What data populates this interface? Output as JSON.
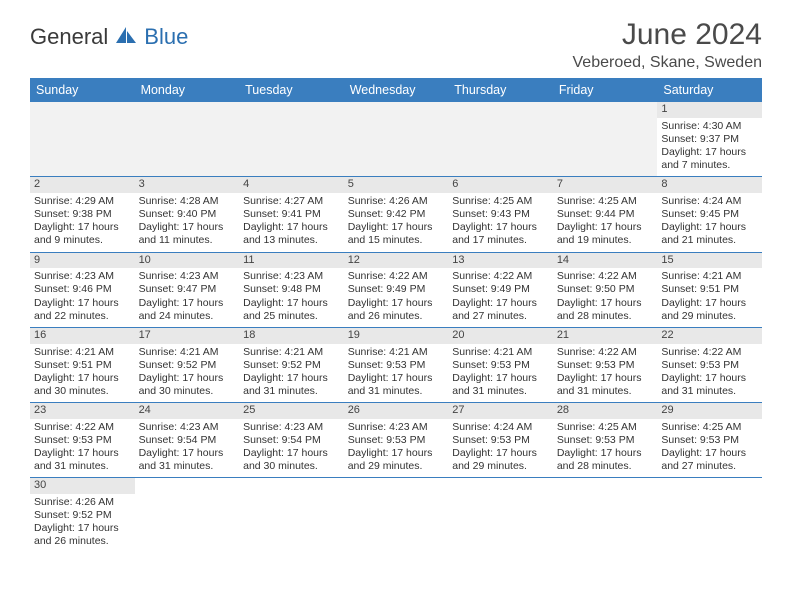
{
  "logo": {
    "part1": "General",
    "part2": "Blue"
  },
  "title": "June 2024",
  "location": "Veberoed, Skane, Sweden",
  "colors": {
    "header_bg": "#3a7ebf",
    "header_text": "#ffffff",
    "daynum_bg": "#e8e8e8",
    "border": "#3a7ebf",
    "logo_blue": "#2b6fb0"
  },
  "dayHeaders": [
    "Sunday",
    "Monday",
    "Tuesday",
    "Wednesday",
    "Thursday",
    "Friday",
    "Saturday"
  ],
  "weeks": [
    [
      null,
      null,
      null,
      null,
      null,
      null,
      {
        "n": "1",
        "sr": "4:30 AM",
        "ss": "9:37 PM",
        "dl": "17 hours and 7 minutes."
      }
    ],
    [
      {
        "n": "2",
        "sr": "4:29 AM",
        "ss": "9:38 PM",
        "dl": "17 hours and 9 minutes."
      },
      {
        "n": "3",
        "sr": "4:28 AM",
        "ss": "9:40 PM",
        "dl": "17 hours and 11 minutes."
      },
      {
        "n": "4",
        "sr": "4:27 AM",
        "ss": "9:41 PM",
        "dl": "17 hours and 13 minutes."
      },
      {
        "n": "5",
        "sr": "4:26 AM",
        "ss": "9:42 PM",
        "dl": "17 hours and 15 minutes."
      },
      {
        "n": "6",
        "sr": "4:25 AM",
        "ss": "9:43 PM",
        "dl": "17 hours and 17 minutes."
      },
      {
        "n": "7",
        "sr": "4:25 AM",
        "ss": "9:44 PM",
        "dl": "17 hours and 19 minutes."
      },
      {
        "n": "8",
        "sr": "4:24 AM",
        "ss": "9:45 PM",
        "dl": "17 hours and 21 minutes."
      }
    ],
    [
      {
        "n": "9",
        "sr": "4:23 AM",
        "ss": "9:46 PM",
        "dl": "17 hours and 22 minutes."
      },
      {
        "n": "10",
        "sr": "4:23 AM",
        "ss": "9:47 PM",
        "dl": "17 hours and 24 minutes."
      },
      {
        "n": "11",
        "sr": "4:23 AM",
        "ss": "9:48 PM",
        "dl": "17 hours and 25 minutes."
      },
      {
        "n": "12",
        "sr": "4:22 AM",
        "ss": "9:49 PM",
        "dl": "17 hours and 26 minutes."
      },
      {
        "n": "13",
        "sr": "4:22 AM",
        "ss": "9:49 PM",
        "dl": "17 hours and 27 minutes."
      },
      {
        "n": "14",
        "sr": "4:22 AM",
        "ss": "9:50 PM",
        "dl": "17 hours and 28 minutes."
      },
      {
        "n": "15",
        "sr": "4:21 AM",
        "ss": "9:51 PM",
        "dl": "17 hours and 29 minutes."
      }
    ],
    [
      {
        "n": "16",
        "sr": "4:21 AM",
        "ss": "9:51 PM",
        "dl": "17 hours and 30 minutes."
      },
      {
        "n": "17",
        "sr": "4:21 AM",
        "ss": "9:52 PM",
        "dl": "17 hours and 30 minutes."
      },
      {
        "n": "18",
        "sr": "4:21 AM",
        "ss": "9:52 PM",
        "dl": "17 hours and 31 minutes."
      },
      {
        "n": "19",
        "sr": "4:21 AM",
        "ss": "9:53 PM",
        "dl": "17 hours and 31 minutes."
      },
      {
        "n": "20",
        "sr": "4:21 AM",
        "ss": "9:53 PM",
        "dl": "17 hours and 31 minutes."
      },
      {
        "n": "21",
        "sr": "4:22 AM",
        "ss": "9:53 PM",
        "dl": "17 hours and 31 minutes."
      },
      {
        "n": "22",
        "sr": "4:22 AM",
        "ss": "9:53 PM",
        "dl": "17 hours and 31 minutes."
      }
    ],
    [
      {
        "n": "23",
        "sr": "4:22 AM",
        "ss": "9:53 PM",
        "dl": "17 hours and 31 minutes."
      },
      {
        "n": "24",
        "sr": "4:23 AM",
        "ss": "9:54 PM",
        "dl": "17 hours and 31 minutes."
      },
      {
        "n": "25",
        "sr": "4:23 AM",
        "ss": "9:54 PM",
        "dl": "17 hours and 30 minutes."
      },
      {
        "n": "26",
        "sr": "4:23 AM",
        "ss": "9:53 PM",
        "dl": "17 hours and 29 minutes."
      },
      {
        "n": "27",
        "sr": "4:24 AM",
        "ss": "9:53 PM",
        "dl": "17 hours and 29 minutes."
      },
      {
        "n": "28",
        "sr": "4:25 AM",
        "ss": "9:53 PM",
        "dl": "17 hours and 28 minutes."
      },
      {
        "n": "29",
        "sr": "4:25 AM",
        "ss": "9:53 PM",
        "dl": "17 hours and 27 minutes."
      }
    ],
    [
      {
        "n": "30",
        "sr": "4:26 AM",
        "ss": "9:52 PM",
        "dl": "17 hours and 26 minutes."
      },
      null,
      null,
      null,
      null,
      null,
      null
    ]
  ],
  "labels": {
    "sunrise": "Sunrise:",
    "sunset": "Sunset:",
    "daylight": "Daylight:"
  }
}
